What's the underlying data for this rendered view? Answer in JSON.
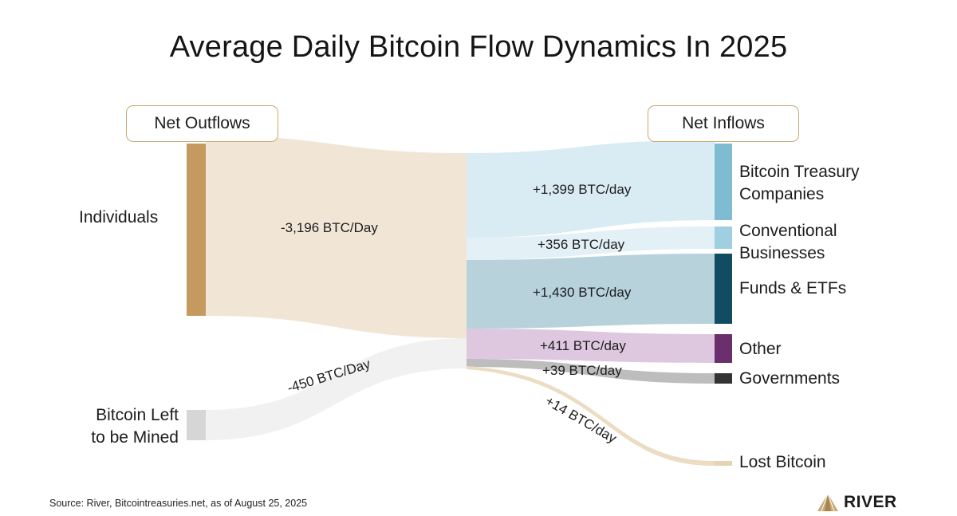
{
  "title": "Average Daily Bitcoin Flow Dynamics In 2025",
  "headers": {
    "outflows": "Net Outflows",
    "inflows": "Net Inflows"
  },
  "sources": [
    {
      "name": "Individuals",
      "flow_label": "-3,196 BTC/Day",
      "value": -3196,
      "color": "#c59a5e"
    },
    {
      "name": "Bitcoin Left\nto be Mined",
      "flow_label": "-450 BTC/Day",
      "value": -450,
      "color": "#d6d6d6"
    }
  ],
  "destinations": [
    {
      "name": "Bitcoin Treasury\nCompanies",
      "flow_label": "+1,399 BTC/day",
      "value": 1399,
      "color": "#7fbcd2"
    },
    {
      "name": "Conventional\nBusinesses",
      "flow_label": "+356 BTC/day",
      "value": 356,
      "color": "#9fcfe0"
    },
    {
      "name": "Funds & ETFs",
      "flow_label": "+1,430 BTC/day",
      "value": 1430,
      "color": "#114d62"
    },
    {
      "name": "Other",
      "flow_label": "+411 BTC/day",
      "value": 411,
      "color": "#6b2f6d"
    },
    {
      "name": "Governments",
      "flow_label": "+39 BTC/day",
      "value": 39,
      "color": "#333333"
    },
    {
      "name": "Lost Bitcoin",
      "flow_label": "+14 BTC/day",
      "value": 14,
      "color": "#e6d3b3"
    }
  ],
  "footer": {
    "source": "Source: River, Bitcointreasuries.net, as of August 25, 2025",
    "brand": "RIVER"
  },
  "colors": {
    "accent": "#c9a873"
  }
}
